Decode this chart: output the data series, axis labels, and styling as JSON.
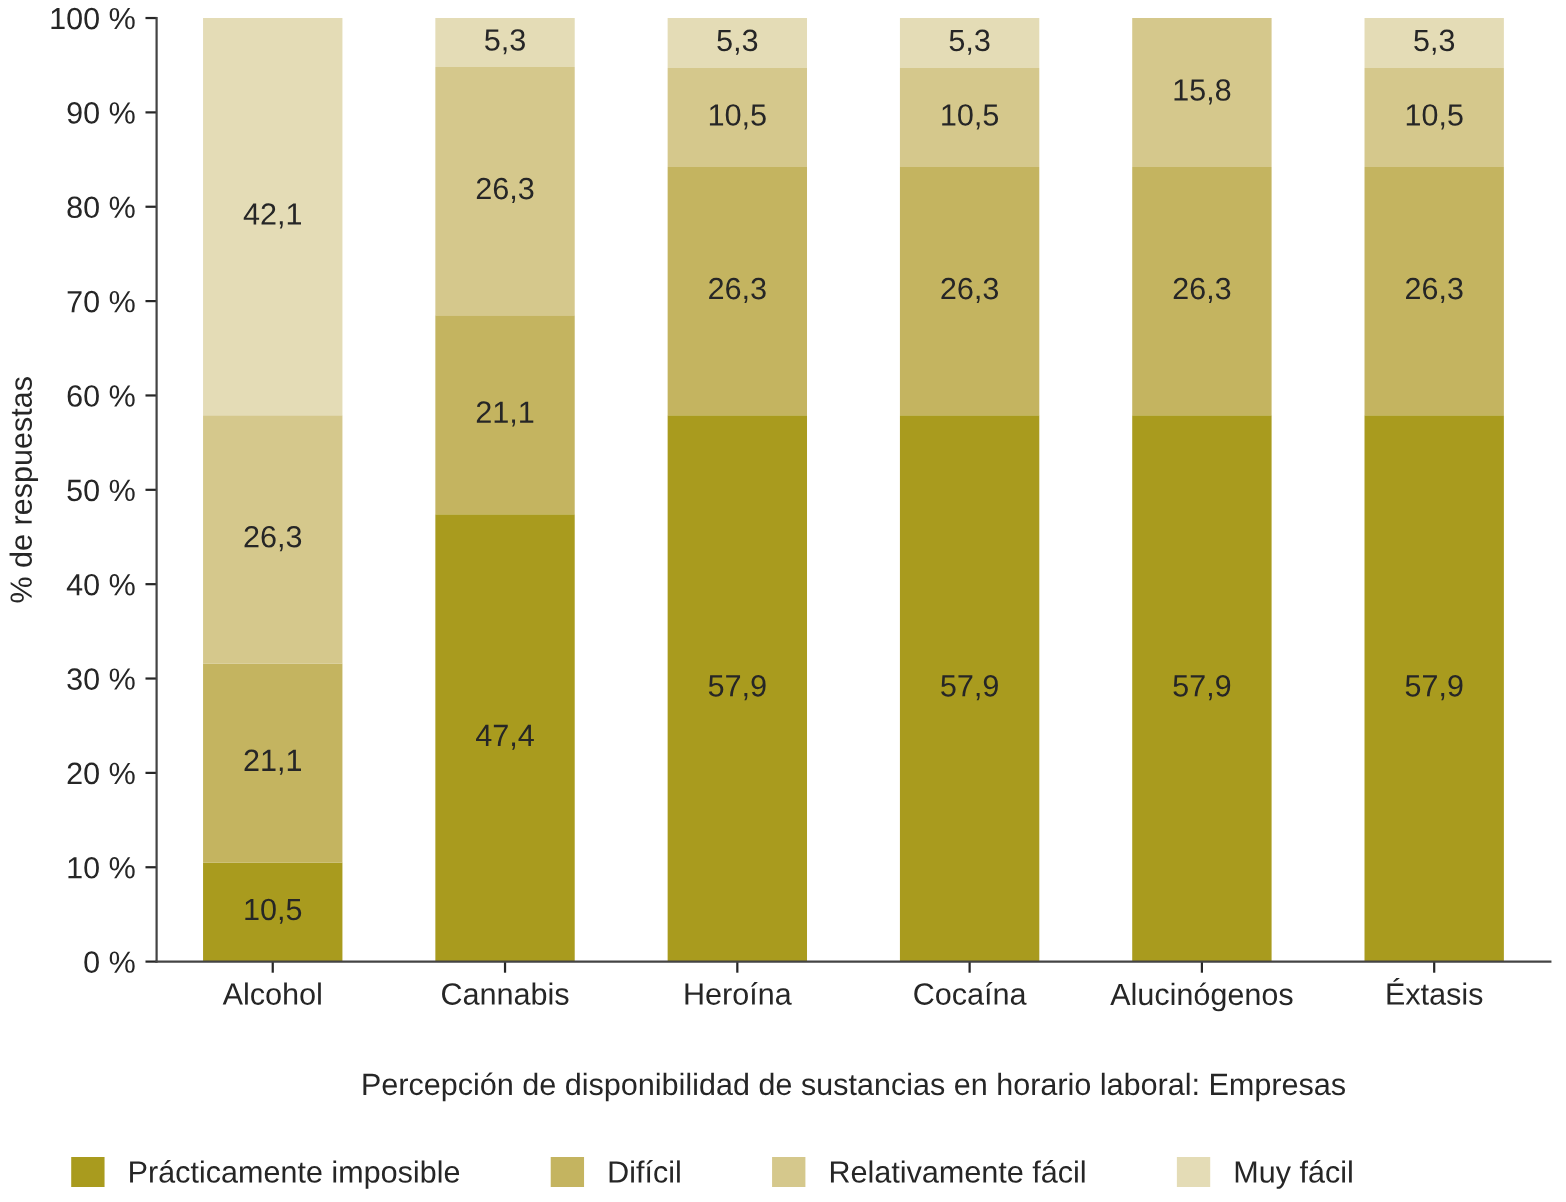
{
  "chart_data": {
    "type": "bar",
    "stacked": true,
    "xlabel": "Percepción de disponibilidad de sustancias en horario laboral: Empresas",
    "ylabel": "% de respuestas",
    "categories": [
      "Alcohol",
      "Cannabis",
      "Heroína",
      "Cocaína",
      "Alucinógenos",
      "Éxtasis"
    ],
    "series": [
      {
        "name": "Prácticamente imposible",
        "color": "#a99b1e",
        "values": [
          10.5,
          47.4,
          57.9,
          57.9,
          57.9,
          57.9
        ],
        "value_labels": [
          "10,5",
          "47,4",
          "57,9",
          "57,9",
          "57,9",
          "57,9"
        ]
      },
      {
        "name": "Difícil",
        "color": "#c4b460",
        "values": [
          21.1,
          21.1,
          26.3,
          26.3,
          26.3,
          26.3
        ],
        "value_labels": [
          "21,1",
          "21,1",
          "26,3",
          "26,3",
          "26,3",
          "26,3"
        ]
      },
      {
        "name": "Relativamente fácil",
        "color": "#d5c88c",
        "values": [
          26.3,
          26.3,
          10.5,
          10.5,
          15.8,
          10.5
        ],
        "value_labels": [
          "26,3",
          "26,3",
          "10,5",
          "10,5",
          "15,8",
          "10,5"
        ]
      },
      {
        "name": "Muy fácil",
        "color": "#e4dcb6",
        "values": [
          42.1,
          5.3,
          5.3,
          5.3,
          null,
          5.3
        ],
        "value_labels": [
          "42,1",
          "5,3",
          "5,3",
          "5,3",
          null,
          "5,3"
        ]
      }
    ],
    "ylim": [
      0,
      100
    ],
    "yticks": [
      {
        "value": 0,
        "label": "0 %"
      },
      {
        "value": 10,
        "label": "10 %"
      },
      {
        "value": 20,
        "label": "20 %"
      },
      {
        "value": 30,
        "label": "30 %"
      },
      {
        "value": 40,
        "label": "40 %"
      },
      {
        "value": 50,
        "label": "50 %"
      },
      {
        "value": 60,
        "label": "60 %"
      },
      {
        "value": 70,
        "label": "70 %"
      },
      {
        "value": 80,
        "label": "80 %"
      },
      {
        "value": 90,
        "label": "90 %"
      },
      {
        "value": 100,
        "label": "100 %"
      }
    ],
    "grid": false,
    "legend": "bottom"
  }
}
